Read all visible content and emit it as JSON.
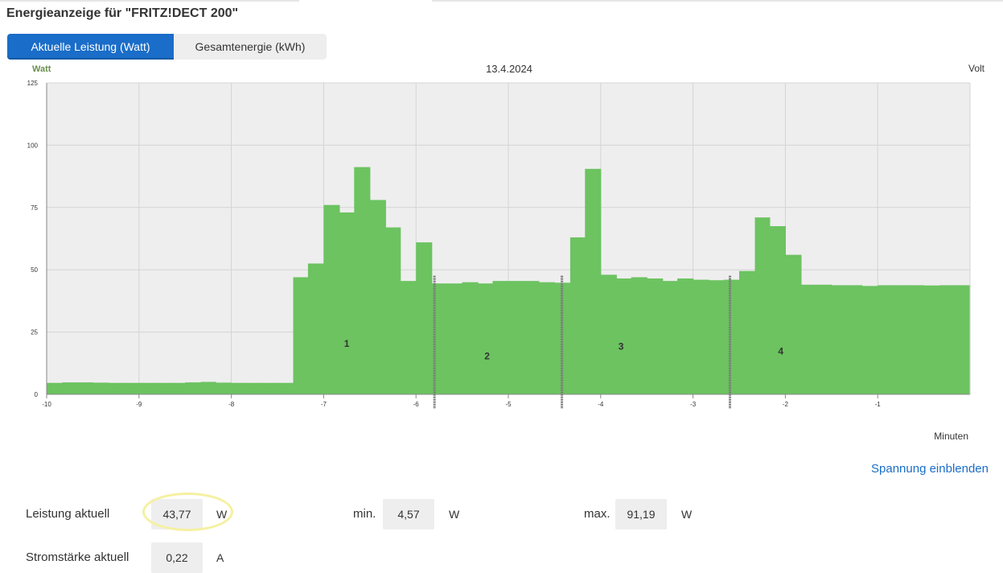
{
  "header": {
    "title": "Energieanzeige für \"FRITZ!DECT 200\""
  },
  "tabs": [
    {
      "label": "Aktuelle Leistung (Watt)",
      "active": true
    },
    {
      "label": "Gesamtenergie (kWh)",
      "active": false
    }
  ],
  "colors": {
    "accent": "#1a6dc8",
    "bar": "#6cc360",
    "plot_bg": "#eeeeee"
  },
  "chart_data": {
    "type": "bar",
    "title": "13.4.2024",
    "ylabel": "Watt",
    "ylabel_right": "Volt",
    "xlabel": "Minuten",
    "xlim": [
      -10,
      0
    ],
    "ylim": [
      0,
      125
    ],
    "yticks": [
      0,
      25,
      50,
      75,
      100,
      125
    ],
    "xticks": [
      -10,
      -9,
      -8,
      -7,
      -6,
      -5,
      -4,
      -3,
      -2,
      -1
    ],
    "grid": true,
    "bin_width": 0.1667,
    "x": [
      -10.0,
      -9.83,
      -9.67,
      -9.5,
      -9.33,
      -9.17,
      -9.0,
      -8.83,
      -8.67,
      -8.5,
      -8.33,
      -8.17,
      -8.0,
      -7.83,
      -7.67,
      -7.5,
      -7.33,
      -7.17,
      -7.0,
      -6.83,
      -6.67,
      -6.5,
      -6.33,
      -6.17,
      -6.0,
      -5.83,
      -5.67,
      -5.5,
      -5.33,
      -5.17,
      -5.0,
      -4.83,
      -4.67,
      -4.5,
      -4.33,
      -4.17,
      -4.0,
      -3.83,
      -3.67,
      -3.5,
      -3.33,
      -3.17,
      -3.0,
      -2.83,
      -2.67,
      -2.5,
      -2.33,
      -2.17,
      -2.0,
      -1.83,
      -1.67,
      -1.5,
      -1.33,
      -1.17,
      -1.0,
      -0.83,
      -0.67,
      -0.5,
      -0.33,
      -0.17
    ],
    "values": [
      4.6,
      4.8,
      4.8,
      4.7,
      4.6,
      4.6,
      4.6,
      4.6,
      4.6,
      4.8,
      5.0,
      4.7,
      4.6,
      4.6,
      4.6,
      4.6,
      47,
      52.5,
      76,
      73,
      91.2,
      78,
      67,
      45.5,
      61,
      44.5,
      44.5,
      45,
      44.5,
      45.5,
      45.5,
      45.5,
      45,
      44.8,
      63,
      90.5,
      48,
      46.5,
      47,
      46.5,
      45.5,
      46.5,
      46,
      45.8,
      46,
      49.5,
      71,
      67.5,
      56,
      44,
      44,
      43.8,
      43.8,
      43.5,
      43.8,
      43.8,
      43.8,
      43.7,
      43.8,
      43.8
    ],
    "phase_labels": [
      {
        "label": "1",
        "x": -6.75,
        "y": 19
      },
      {
        "label": "2",
        "x": -5.23,
        "y": 14
      },
      {
        "label": "3",
        "x": -3.78,
        "y": 18
      },
      {
        "label": "4",
        "x": -2.05,
        "y": 16
      }
    ],
    "phase_markers": [
      -5.8,
      -4.42,
      -2.6
    ]
  },
  "stats": {
    "power_label": "Leistung aktuell",
    "power_value": "43,77",
    "power_unit": "W",
    "min_label": "min.",
    "min_value": "4,57",
    "min_unit": "W",
    "max_label": "max.",
    "max_value": "91,19",
    "max_unit": "W",
    "current_label": "Stromstärke aktuell",
    "current_value": "0,22",
    "current_unit": "A"
  },
  "links": {
    "voltage": "Spannung einblenden"
  }
}
